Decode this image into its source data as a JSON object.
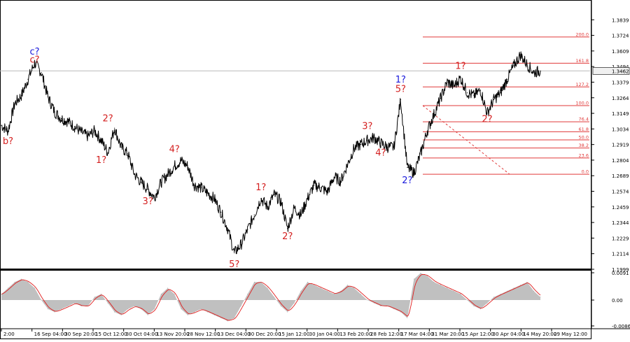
{
  "chart_data": [
    {
      "type": "line",
      "title": "",
      "xlabel": "",
      "ylabel": "",
      "ylim": [
        1.1999,
        1.3954
      ],
      "price_ticks": [
        "1.3839",
        "1.3724",
        "1.3609",
        "1.3494",
        "1.3379",
        "1.3264",
        "1.3149",
        "1.3034",
        "1.2919",
        "1.2804",
        "1.2689",
        "1.2574",
        "1.2459",
        "1.2344",
        "1.2229",
        "1.2114",
        "1.1999"
      ],
      "current_price": "1.3462",
      "series": [
        {
          "values": [
            1.306,
            1.302,
            1.322,
            1.328,
            1.34,
            1.352,
            1.345,
            1.327,
            1.316,
            1.311,
            1.309,
            1.305,
            1.301,
            1.298,
            1.302,
            1.295,
            1.286,
            1.304,
            1.29,
            1.285,
            1.27,
            1.264,
            1.259,
            1.253,
            1.264,
            1.27,
            1.276,
            1.28,
            1.276,
            1.262,
            1.26,
            1.256,
            1.252,
            1.242,
            1.23,
            1.212,
            1.218,
            1.229,
            1.24,
            1.252,
            1.246,
            1.255,
            1.25,
            1.23,
            1.245,
            1.24,
            1.252,
            1.262,
            1.26,
            1.257,
            1.268,
            1.265,
            1.277,
            1.289,
            1.292,
            1.295,
            1.297,
            1.293,
            1.29,
            1.29,
            1.325,
            1.275,
            1.271,
            1.285,
            1.302,
            1.314,
            1.326,
            1.338,
            1.335,
            1.341,
            1.33,
            1.328,
            1.332,
            1.315,
            1.325,
            1.33,
            1.34,
            1.35,
            1.358,
            1.351,
            1.345,
            1.3462
          ]
        }
      ],
      "fibonacci_levels": [
        {
          "label": "200.0",
          "value": 1.3712
        },
        {
          "label": "161.8",
          "value": 1.3519
        },
        {
          "label": "127.2",
          "value": 1.3344
        },
        {
          "label": "100.0",
          "value": 1.3206
        },
        {
          "label": "76.4",
          "value": 1.3087
        },
        {
          "label": "61.8",
          "value": 1.3013
        },
        {
          "label": "50.0",
          "value": 1.2953
        },
        {
          "label": "38.2",
          "value": 1.2893
        },
        {
          "label": "23.6",
          "value": 1.282
        },
        {
          "label": "0.0",
          "value": 1.27
        }
      ],
      "wave_labels": [
        {
          "text": "c?",
          "color": "#1a1adc",
          "x_index": 5,
          "y": 1.3583
        },
        {
          "text": "c?",
          "color": "#d42020",
          "x_index": 5,
          "y": 1.3523
        },
        {
          "text": "b?",
          "color": "#d42020",
          "x_index": 1,
          "y": 1.2922
        },
        {
          "text": "2?",
          "color": "#d42020",
          "x_index": 16,
          "y": 1.3089
        },
        {
          "text": "1?",
          "color": "#d42020",
          "x_index": 15,
          "y": 1.2782
        },
        {
          "text": "3?",
          "color": "#d42020",
          "x_index": 22,
          "y": 1.2479
        },
        {
          "text": "4?",
          "color": "#d42020",
          "x_index": 26,
          "y": 1.2862
        },
        {
          "text": "5?",
          "color": "#d42020",
          "x_index": 35,
          "y": 1.2014
        },
        {
          "text": "1?",
          "color": "#d42020",
          "x_index": 39,
          "y": 1.2582
        },
        {
          "text": "2?",
          "color": "#d42020",
          "x_index": 43,
          "y": 1.2221
        },
        {
          "text": "3?",
          "color": "#d42020",
          "x_index": 55,
          "y": 1.3033
        },
        {
          "text": "4?",
          "color": "#d42020",
          "x_index": 57,
          "y": 1.2837
        },
        {
          "text": "1?",
          "color": "#1a1adc",
          "x_index": 60,
          "y": 1.3377
        },
        {
          "text": "5?",
          "color": "#d42020",
          "x_index": 60,
          "y": 1.3306
        },
        {
          "text": "2?",
          "color": "#1a1adc",
          "x_index": 61,
          "y": 1.2634
        },
        {
          "text": "1?",
          "color": "#d42020",
          "x_index": 69,
          "y": 1.3478
        },
        {
          "text": "2?",
          "color": "#d42020",
          "x_index": 73,
          "y": 1.3085
        }
      ]
    },
    {
      "type": "area",
      "title": "",
      "ylim": [
        -0.00862,
        0.0091
      ],
      "ticks": [
        "0.0091",
        "0.00",
        "-0.00862"
      ],
      "series": [
        {
          "values": [
            0.002,
            0.004,
            0.006,
            0.007,
            0.006,
            0.004,
            0.0,
            -0.003,
            -0.004,
            -0.003,
            -0.002,
            -0.001,
            -0.002,
            -0.002,
            0.001,
            0.002,
            -0.001,
            -0.004,
            -0.005,
            -0.003,
            -0.002,
            -0.003,
            -0.005,
            -0.003,
            0.002,
            0.004,
            0.002,
            -0.003,
            -0.005,
            -0.004,
            -0.003,
            -0.004,
            -0.005,
            -0.006,
            -0.007,
            -0.006,
            -0.002,
            0.002,
            0.006,
            0.006,
            0.004,
            0.001,
            -0.002,
            -0.004,
            -0.001,
            0.003,
            0.006,
            0.005,
            0.004,
            0.003,
            0.002,
            0.003,
            0.005,
            0.004,
            0.002,
            0.0,
            -0.001,
            -0.002,
            -0.002,
            -0.003,
            -0.004,
            -0.006,
            0.007,
            0.009,
            0.008,
            0.006,
            0.005,
            0.004,
            0.003,
            0.002,
            0.0,
            -0.002,
            -0.003,
            -0.001,
            0.001,
            0.002,
            0.003,
            0.004,
            0.005,
            0.006,
            0.003,
            0.001
          ]
        }
      ]
    }
  ],
  "time_ticks": [
    "2:00",
    "16 Sep 04:00",
    "30 Sep 20:00",
    "15 Oct 12:00",
    "30 Oct 04:00",
    "13 Nov 20:00",
    "28 Nov 12:00",
    "13 Dec 04:00",
    "30 Dec 20:00",
    "15 Jan 12:00",
    "30 Jan 04:00",
    "13 Feb 20:00",
    "28 Feb 12:00",
    "17 Mar 04:00",
    "31 Mar 20:00",
    "15 Apr 12:00",
    "30 Apr 04:00",
    "14 May 20:00",
    "29 May 12:00"
  ],
  "colors": {
    "price": "#000000",
    "fib": "#e03a3a",
    "osc_fill": "#c0c0c0",
    "osc_signal": "#e01e1e",
    "label_blue": "#1a1adc",
    "label_red": "#d42020",
    "price_box": "#f0f0f0",
    "grid": "#bcbcbc"
  }
}
